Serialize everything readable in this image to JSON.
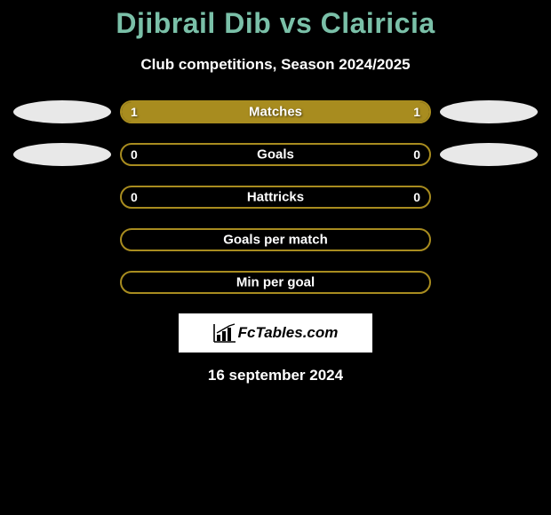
{
  "title": "Djibrail Dib vs Clairicia",
  "title_color": "#7ac0a8",
  "subtitle": "Club competitions, Season 2024/2025",
  "border_color": "#a88c1f",
  "fill_color": "#a88c1f",
  "ellipse_color": "#e8e8e8",
  "bars": [
    {
      "label": "Matches",
      "left_val": "1",
      "right_val": "1",
      "left_pct": 50,
      "right_pct": 50,
      "show_left_ellipse": true,
      "show_right_ellipse": true
    },
    {
      "label": "Goals",
      "left_val": "0",
      "right_val": "0",
      "left_pct": 0,
      "right_pct": 0,
      "show_left_ellipse": true,
      "show_right_ellipse": true
    },
    {
      "label": "Hattricks",
      "left_val": "0",
      "right_val": "0",
      "left_pct": 0,
      "right_pct": 0,
      "show_left_ellipse": false,
      "show_right_ellipse": false
    },
    {
      "label": "Goals per match",
      "left_val": "",
      "right_val": "",
      "left_pct": 0,
      "right_pct": 0,
      "show_left_ellipse": false,
      "show_right_ellipse": false
    },
    {
      "label": "Min per goal",
      "left_val": "",
      "right_val": "",
      "left_pct": 0,
      "right_pct": 0,
      "show_left_ellipse": false,
      "show_right_ellipse": false
    }
  ],
  "logo_text": "FcTables.com",
  "date": "16 september 2024",
  "background_color": "#000000"
}
